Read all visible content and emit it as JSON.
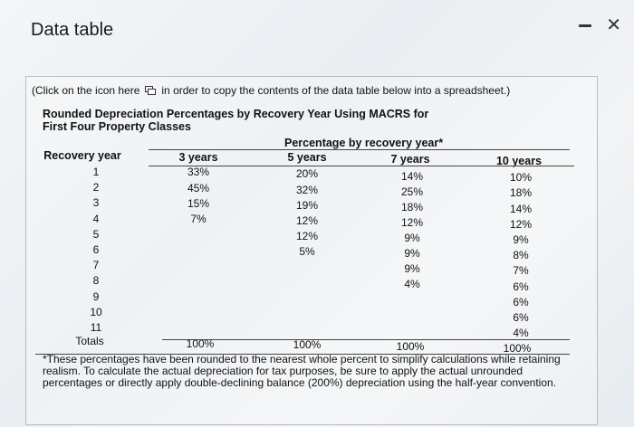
{
  "window": {
    "title": "Data table"
  },
  "instructions": {
    "before": "(Click on the icon here",
    "after": "in order to copy the contents of the data table below into a spreadsheet.)"
  },
  "table": {
    "title": "Rounded Depreciation Percentages by Recovery Year Using MACRS for First Four Property Classes",
    "group_header": "Percentage by recovery year*",
    "recovery_year_header": "Recovery year",
    "columns": [
      "3 years",
      "5 years",
      "7 years",
      "10 years"
    ],
    "years": [
      "1",
      "2",
      "3",
      "4",
      "5",
      "6",
      "7",
      "8",
      "9",
      "10",
      "11"
    ],
    "col_3": [
      "33%",
      "45%",
      "15%",
      "7%"
    ],
    "col_5": [
      "20%",
      "32%",
      "19%",
      "12%",
      "12%",
      "5%"
    ],
    "col_7": [
      "14%",
      "25%",
      "18%",
      "12%",
      "9%",
      "9%",
      "9%",
      "4%"
    ],
    "col_10": [
      "10%",
      "18%",
      "14%",
      "12%",
      "9%",
      "8%",
      "7%",
      "6%",
      "6%",
      "6%",
      "4%"
    ],
    "totals_label": "Totals",
    "totals": [
      "100%",
      "100%",
      "100%",
      "100%"
    ]
  },
  "footnote": "*These percentages have been rounded to the nearest whole percent to simplify calculations while retaining realism. To calculate the actual depreciation for tax purposes, be sure to apply the actual unrounded percentages or directly apply double-declining balance (200%) depreciation using the half-year convention."
}
